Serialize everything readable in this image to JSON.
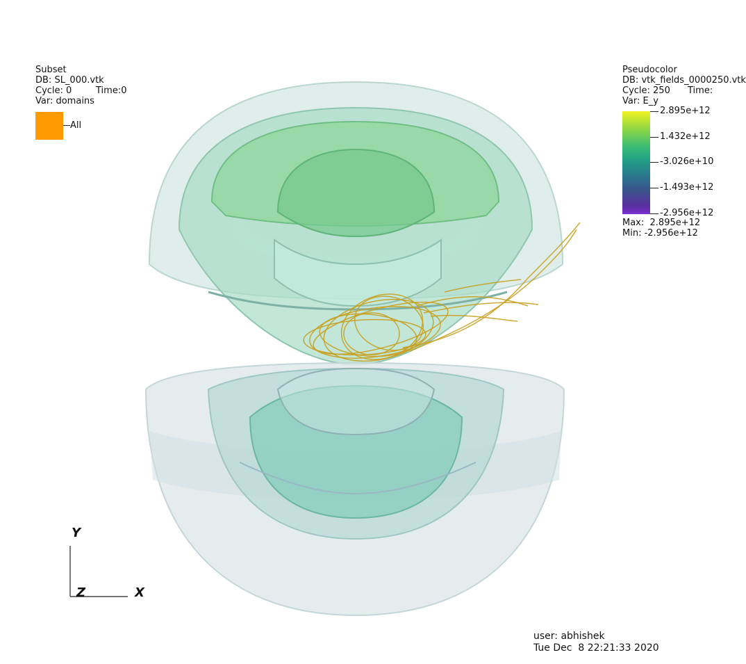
{
  "subset_legend": {
    "plot_type": "Subset",
    "db": "DB: SL_000.vtk",
    "cycle": "Cycle: 0",
    "time": "Time:0",
    "var": "Var: domains",
    "entry_label": "All",
    "entry_color": "#ff9a00"
  },
  "pseudocolor_legend": {
    "plot_type": "Pseudocolor",
    "db": "DB: vtk_fields_0000250.vtk",
    "cycle": "Cycle: 250",
    "time": "Time:",
    "var": "Var: E_y",
    "ticks": [
      "2.895e+12",
      "1.432e+12",
      "-3.026e+10",
      "-1.493e+12",
      "-2.956e+12"
    ],
    "max": "Max:  2.895e+12",
    "min": "Min: -2.956e+12"
  },
  "axes": {
    "y": "Y",
    "x": "X",
    "z": "Z"
  },
  "user_info": {
    "user": "user: abhishek",
    "date": "Tue Dec  8 22:21:33 2020"
  },
  "colors": {
    "streamlines": "#c8a020",
    "shell_outer": "#cfe6e0",
    "shell_mid": "#8fcfb8",
    "shell_inner": "#6cc08a"
  }
}
